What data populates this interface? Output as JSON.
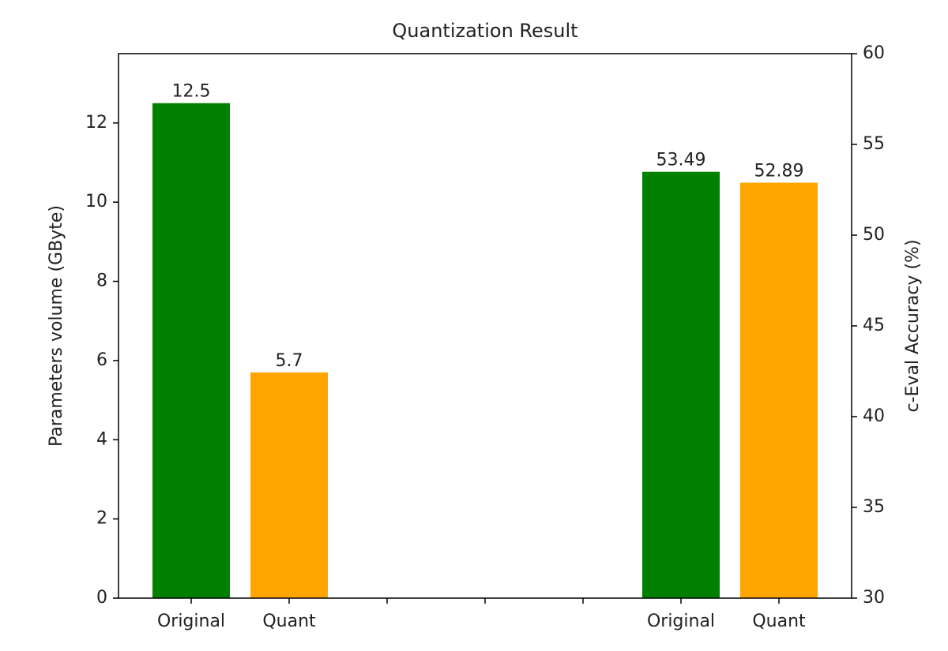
{
  "chart_data": {
    "type": "bar",
    "title": "Quantization Result",
    "ylabel": "Parameters volume (GByte)",
    "y2label": "c-Eval Accuracy (%)",
    "categories": [
      "Original",
      "Quant",
      null,
      null,
      null,
      "Original",
      "Quant"
    ],
    "colors": [
      "#008000",
      "#ffa500",
      null,
      null,
      null,
      "#008000",
      "#ffa500"
    ],
    "series": [
      {
        "axis": "y",
        "values": [
          12.5,
          5.7,
          null,
          null,
          null,
          null,
          null
        ]
      },
      {
        "axis": "y2",
        "values": [
          null,
          null,
          null,
          null,
          null,
          53.49,
          52.89
        ]
      }
    ],
    "ylim": [
      0,
      13.75
    ],
    "yticks": [
      0,
      2,
      4,
      6,
      8,
      10,
      12
    ],
    "y2lim": [
      30,
      60
    ],
    "y2ticks": [
      30,
      35,
      40,
      45,
      50,
      55,
      60
    ]
  }
}
